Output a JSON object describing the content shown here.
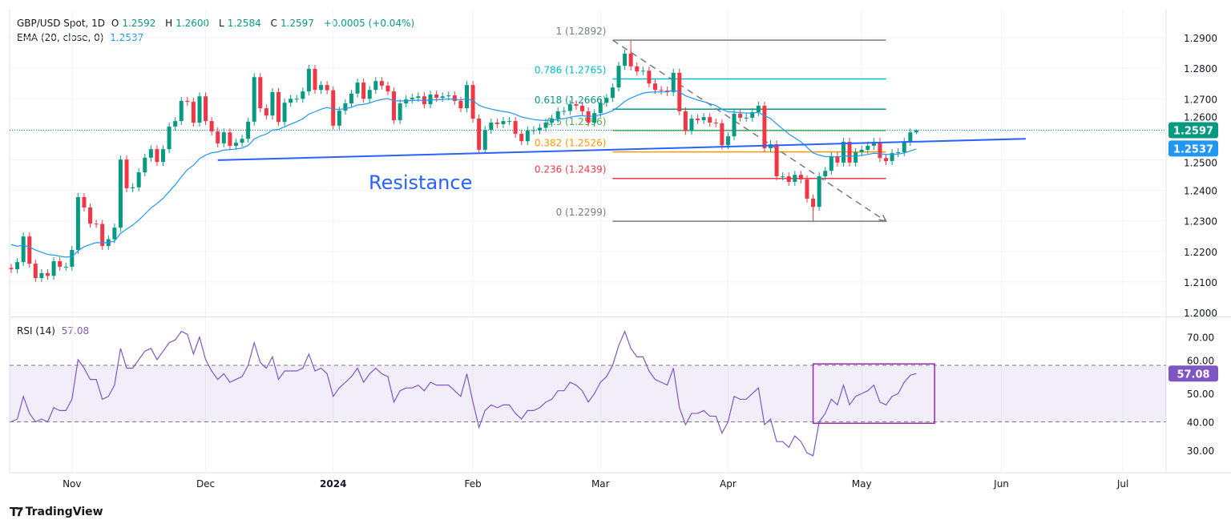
{
  "header": {
    "symbol": "GBP/USD Spot, 1D",
    "o_label": "O",
    "o": "1.2592",
    "h_label": "H",
    "h": "1.2600",
    "l_label": "L",
    "l": "1.2584",
    "c_label": "C",
    "c": "1.2597",
    "change": "+0.0005 (+0.04%)"
  },
  "ema_legend": {
    "label": "EMA (20, close, 0)",
    "value": "1.2537"
  },
  "rsi_legend": {
    "label": "RSI (14)",
    "value": "57.08"
  },
  "price_badges": {
    "last": "1.2597",
    "ema": "1.2537"
  },
  "rsi_badge": "57.08",
  "branding": "TradingView",
  "colors": {
    "up": "#089981",
    "down": "#f23645",
    "ema": "#2196f3",
    "resistance": "#2962ff",
    "rsi": "#7e57c2",
    "rsi_box": "#9c27b0",
    "grid": "#f0f3fa"
  },
  "chart_data": [
    {
      "type": "candlestick",
      "title": "",
      "ylim": [
        1.1987,
        1.2992
      ],
      "y_ticks": [
        "1.2900",
        "1.2800",
        "1.2700",
        "1.2600",
        "1.2500",
        "1.2400",
        "1.2300",
        "1.2200",
        "1.2100",
        "1.2000"
      ],
      "x_ticks": [
        {
          "label": "Nov",
          "date": "2023-11-01",
          "bold": false
        },
        {
          "label": "Dec",
          "date": "2023-12-01",
          "bold": false
        },
        {
          "label": "2024",
          "date": "2024-01-01",
          "bold": true
        },
        {
          "label": "Feb",
          "date": "2024-02-01",
          "bold": false
        },
        {
          "label": "Mar",
          "date": "2024-03-01",
          "bold": false
        },
        {
          "label": "Apr",
          "date": "2024-04-01",
          "bold": false
        },
        {
          "label": "May",
          "date": "2024-05-01",
          "bold": false
        },
        {
          "label": "Jun",
          "date": "2024-06-03",
          "bold": false
        },
        {
          "label": "Jul",
          "date": "2024-07-01",
          "bold": false
        }
      ],
      "columns": [
        "date",
        "close",
        "rsi"
      ],
      "rows": [
        [
          "2023-10-18",
          1.2142,
          40
        ],
        [
          "2023-10-19",
          1.2165,
          41
        ],
        [
          "2023-10-20",
          1.2249,
          49
        ],
        [
          "2023-10-23",
          1.216,
          43
        ],
        [
          "2023-10-24",
          1.2113,
          40
        ],
        [
          "2023-10-25",
          1.2129,
          41
        ],
        [
          "2023-10-26",
          1.212,
          40
        ],
        [
          "2023-10-27",
          1.2168,
          45
        ],
        [
          "2023-10-30",
          1.215,
          44
        ],
        [
          "2023-10-31",
          1.215,
          44
        ],
        [
          "2023-11-01",
          1.2205,
          48
        ],
        [
          "2023-11-02",
          1.2378,
          62
        ],
        [
          "2023-11-03",
          1.2344,
          59
        ],
        [
          "2023-11-06",
          1.2291,
          55
        ],
        [
          "2023-11-07",
          1.229,
          55
        ],
        [
          "2023-11-08",
          1.2218,
          48
        ],
        [
          "2023-11-09",
          1.224,
          49
        ],
        [
          "2023-11-10",
          1.2278,
          53
        ],
        [
          "2023-11-13",
          1.2501,
          66
        ],
        [
          "2023-11-14",
          1.2407,
          59
        ],
        [
          "2023-11-15",
          1.241,
          59
        ],
        [
          "2023-11-16",
          1.2459,
          62
        ],
        [
          "2023-11-17",
          1.2507,
          65
        ],
        [
          "2023-11-20",
          1.2535,
          66
        ],
        [
          "2023-11-21",
          1.2493,
          62
        ],
        [
          "2023-11-22",
          1.2535,
          65
        ],
        [
          "2023-11-23",
          1.2609,
          68
        ],
        [
          "2023-11-24",
          1.2627,
          69
        ],
        [
          "2023-11-27",
          1.2693,
          72
        ],
        [
          "2023-11-28",
          1.269,
          71
        ],
        [
          "2023-11-29",
          1.2622,
          64
        ],
        [
          "2023-11-30",
          1.2708,
          70
        ],
        [
          "2023-12-01",
          1.2627,
          62
        ],
        [
          "2023-12-04",
          1.2593,
          58
        ],
        [
          "2023-12-05",
          1.2554,
          55
        ],
        [
          "2023-12-06",
          1.259,
          57
        ],
        [
          "2023-12-07",
          1.2546,
          54
        ],
        [
          "2023-12-08",
          1.2556,
          55
        ],
        [
          "2023-12-11",
          1.2569,
          56
        ],
        [
          "2023-12-12",
          1.2625,
          60
        ],
        [
          "2023-12-13",
          1.2771,
          68
        ],
        [
          "2023-12-14",
          1.2669,
          61
        ],
        [
          "2023-12-15",
          1.2645,
          59
        ],
        [
          "2023-12-18",
          1.2722,
          63
        ],
        [
          "2023-12-19",
          1.2624,
          55
        ],
        [
          "2023-12-20",
          1.2687,
          58
        ],
        [
          "2023-12-21",
          1.27,
          58
        ],
        [
          "2023-12-22",
          1.27,
          58
        ],
        [
          "2023-12-25",
          1.2724,
          59
        ],
        [
          "2023-12-26",
          1.2798,
          64
        ],
        [
          "2023-12-27",
          1.2729,
          58
        ],
        [
          "2023-12-28",
          1.2745,
          59
        ],
        [
          "2023-12-29",
          1.2728,
          57
        ],
        [
          "2024-01-01",
          1.2612,
          49
        ],
        [
          "2024-01-02",
          1.2661,
          52
        ],
        [
          "2024-01-03",
          1.2685,
          54
        ],
        [
          "2024-01-04",
          1.2717,
          56
        ],
        [
          "2024-01-05",
          1.2753,
          59
        ],
        [
          "2024-01-08",
          1.27,
          54
        ],
        [
          "2024-01-09",
          1.2729,
          57
        ],
        [
          "2024-01-10",
          1.2758,
          59
        ],
        [
          "2024-01-11",
          1.2743,
          57
        ],
        [
          "2024-01-12",
          1.2724,
          56
        ],
        [
          "2024-01-15",
          1.263,
          47
        ],
        [
          "2024-01-16",
          1.2685,
          51
        ],
        [
          "2024-01-17",
          1.2698,
          52
        ],
        [
          "2024-01-18",
          1.2703,
          52
        ],
        [
          "2024-01-19",
          1.2708,
          53
        ],
        [
          "2024-01-22",
          1.2682,
          51
        ],
        [
          "2024-01-23",
          1.2714,
          54
        ],
        [
          "2024-01-24",
          1.2703,
          53
        ],
        [
          "2024-01-25",
          1.2708,
          53
        ],
        [
          "2024-01-26",
          1.2711,
          53
        ],
        [
          "2024-01-29",
          1.2693,
          51
        ],
        [
          "2024-01-30",
          1.2669,
          49
        ],
        [
          "2024-01-31",
          1.2745,
          57
        ],
        [
          "2024-02-01",
          1.2635,
          47
        ],
        [
          "2024-02-02",
          1.2533,
          38
        ],
        [
          "2024-02-05",
          1.2598,
          44
        ],
        [
          "2024-02-06",
          1.2622,
          46
        ],
        [
          "2024-02-07",
          1.2617,
          45
        ],
        [
          "2024-02-08",
          1.2627,
          46
        ],
        [
          "2024-02-09",
          1.2627,
          46
        ],
        [
          "2024-02-12",
          1.2585,
          43
        ],
        [
          "2024-02-13",
          1.2561,
          41
        ],
        [
          "2024-02-14",
          1.2596,
          44
        ],
        [
          "2024-02-15",
          1.2597,
          44
        ],
        [
          "2024-02-16",
          1.2605,
          45
        ],
        [
          "2024-02-19",
          1.2622,
          47
        ],
        [
          "2024-02-20",
          1.2635,
          48
        ],
        [
          "2024-02-21",
          1.2659,
          51
        ],
        [
          "2024-02-22",
          1.266,
          51
        ],
        [
          "2024-02-23",
          1.2682,
          54
        ],
        [
          "2024-02-26",
          1.2677,
          53
        ],
        [
          "2024-02-27",
          1.2659,
          51
        ],
        [
          "2024-02-28",
          1.2622,
          47
        ],
        [
          "2024-02-29",
          1.2653,
          50
        ],
        [
          "2024-03-01",
          1.2687,
          54
        ],
        [
          "2024-03-04",
          1.2703,
          56
        ],
        [
          "2024-03-05",
          1.2737,
          60
        ],
        [
          "2024-03-06",
          1.2808,
          67
        ],
        [
          "2024-03-07",
          1.2848,
          72
        ],
        [
          "2024-03-08",
          1.2806,
          66
        ],
        [
          "2024-03-11",
          1.279,
          63
        ],
        [
          "2024-03-12",
          1.2792,
          63
        ],
        [
          "2024-03-13",
          1.275,
          58
        ],
        [
          "2024-03-14",
          1.2729,
          55
        ],
        [
          "2024-03-15",
          1.2727,
          54
        ],
        [
          "2024-03-18",
          1.2722,
          53
        ],
        [
          "2024-03-19",
          1.2785,
          59
        ],
        [
          "2024-03-20",
          1.2659,
          45
        ],
        [
          "2024-03-21",
          1.2595,
          39
        ],
        [
          "2024-03-22",
          1.2635,
          43
        ],
        [
          "2024-03-25",
          1.263,
          43
        ],
        [
          "2024-03-26",
          1.264,
          44
        ],
        [
          "2024-03-27",
          1.2622,
          42
        ],
        [
          "2024-03-28",
          1.262,
          42
        ],
        [
          "2024-03-29",
          1.2548,
          36
        ],
        [
          "2024-04-01",
          1.2577,
          40
        ],
        [
          "2024-04-02",
          1.2651,
          49
        ],
        [
          "2024-04-03",
          1.2638,
          48
        ],
        [
          "2024-04-04",
          1.2638,
          48
        ],
        [
          "2024-04-05",
          1.2656,
          50
        ],
        [
          "2024-04-08",
          1.2677,
          52
        ],
        [
          "2024-04-09",
          1.2538,
          39
        ],
        [
          "2024-04-10",
          1.2551,
          41
        ],
        [
          "2024-04-11",
          1.2446,
          33
        ],
        [
          "2024-04-12",
          1.2446,
          33
        ],
        [
          "2024-04-15",
          1.2428,
          31
        ],
        [
          "2024-04-16",
          1.2451,
          35
        ],
        [
          "2024-04-17",
          1.2436,
          33
        ],
        [
          "2024-04-18",
          1.2373,
          29
        ],
        [
          "2024-04-19",
          1.2346,
          28
        ],
        [
          "2024-04-22",
          1.2446,
          40
        ],
        [
          "2024-04-23",
          1.2464,
          43
        ],
        [
          "2024-04-24",
          1.2512,
          48
        ],
        [
          "2024-04-25",
          1.2491,
          46
        ],
        [
          "2024-04-26",
          1.2559,
          53
        ],
        [
          "2024-04-29",
          1.2491,
          46
        ],
        [
          "2024-04-30",
          1.2525,
          49
        ],
        [
          "2024-05-01",
          1.2533,
          50
        ],
        [
          "2024-05-02",
          1.2546,
          51
        ],
        [
          "2024-05-03",
          1.2559,
          53
        ],
        [
          "2024-05-06",
          1.2506,
          47
        ],
        [
          "2024-05-07",
          1.2496,
          46
        ],
        [
          "2024-05-08",
          1.2522,
          49
        ],
        [
          "2024-05-09",
          1.2525,
          50
        ],
        [
          "2024-05-10",
          1.2559,
          54
        ],
        [
          "2024-05-13",
          1.259,
          56.5
        ],
        [
          "2024-05-14",
          1.2597,
          57.08
        ]
      ],
      "ema_period": 20,
      "last_price": 1.2597,
      "annotations": {
        "resistance": {
          "label": "Resistance",
          "from": {
            "date": "2023-12-05",
            "price": 1.2499
          },
          "to": {
            "date": "2024-06-07",
            "price": 1.2569
          }
        },
        "fibonacci": {
          "from_date": "2024-03-05",
          "to_date": "2024-05-07",
          "levels": [
            {
              "ratio": "1",
              "price": 1.2892,
              "label": "1 (1.2892)",
              "color": "#787b86"
            },
            {
              "ratio": "0.786",
              "price": 1.2765,
              "label": "0.786 (1.2765)",
              "color": "#00bcd4"
            },
            {
              "ratio": "0.618",
              "price": 1.2666,
              "label": "0.618 (1.2666)",
              "color": "#089981"
            },
            {
              "ratio": "0.5",
              "price": 1.2596,
              "label": "0.5 (1.2596)",
              "color": "#4caf50"
            },
            {
              "ratio": "0.382",
              "price": 1.2526,
              "label": "0.382 (1.2526)",
              "color": "#ff9800"
            },
            {
              "ratio": "0.236",
              "price": 1.2439,
              "label": "0.236 (1.2439)",
              "color": "#f23645"
            },
            {
              "ratio": "0",
              "price": 1.2299,
              "label": "0 (1.2299)",
              "color": "#787b86"
            }
          ]
        }
      }
    },
    {
      "type": "line",
      "title": "RSI (14)",
      "ylim": [
        22,
        77
      ],
      "y_ticks": [
        "70.00",
        "60.00",
        "50.00",
        "40.00",
        "30.00"
      ],
      "band": [
        40,
        60
      ],
      "highlight_box": {
        "from_date": "2024-04-19",
        "to_date": "2024-05-17",
        "rsi_range": [
          39.5,
          60.5
        ]
      },
      "last_value": 57.08
    }
  ]
}
